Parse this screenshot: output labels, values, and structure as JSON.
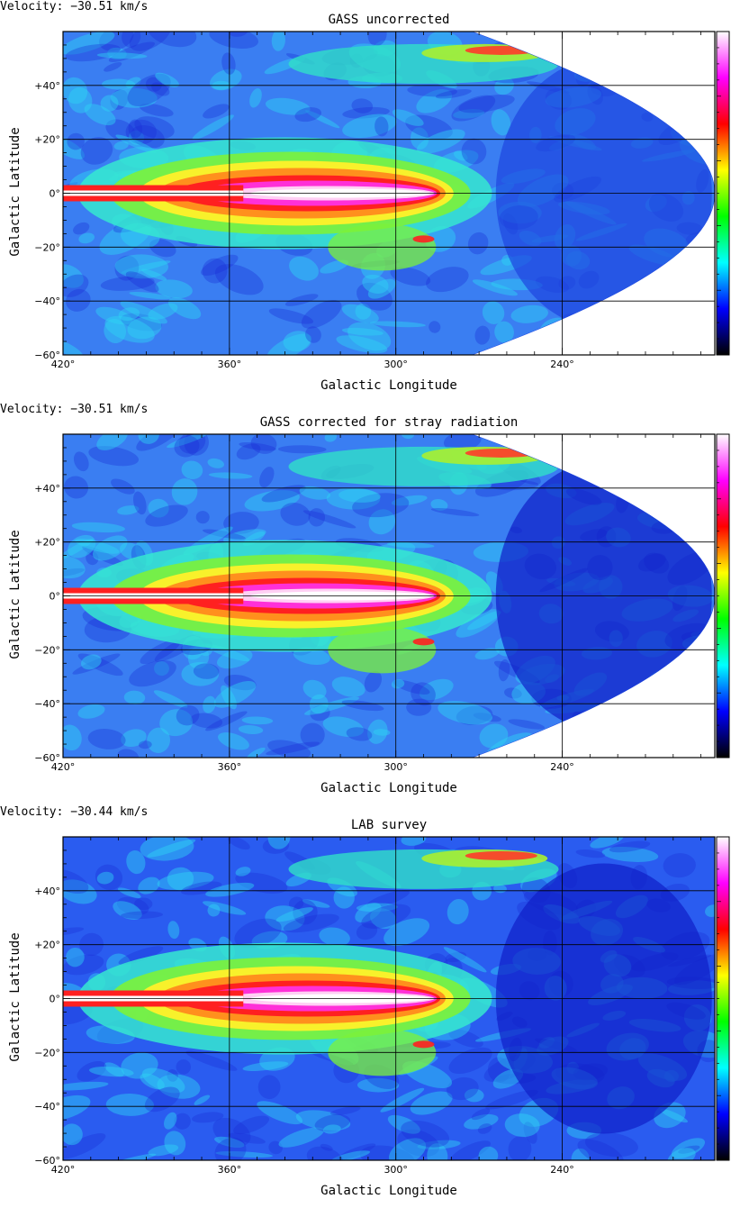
{
  "chart_data": [
    {
      "type": "heatmap",
      "velocity_label": "Velocity: −30.51 km/s",
      "title": "GASS uncorrected",
      "xlabel": "Galactic Longitude",
      "ylabel": "Galactic Latitude",
      "xlim": [
        420,
        185
      ],
      "ylim": [
        -60,
        60
      ],
      "xticks": [
        "420°",
        "360°",
        "300°",
        "240°"
      ],
      "yticks": [
        "+40°",
        "+20°",
        "0°",
        "−20°",
        "−40°",
        "−60°"
      ],
      "mask": "sinusoidal",
      "colormap": [
        "#000000",
        "#0000ff",
        "#00ffff",
        "#00ff00",
        "#ffff00",
        "#ff0000",
        "#ff00ff",
        "#ffffff"
      ]
    },
    {
      "type": "heatmap",
      "velocity_label": "Velocity: −30.51 km/s",
      "title": "GASS corrected for stray radiation",
      "xlabel": "Galactic Longitude",
      "ylabel": "Galactic Latitude",
      "xlim": [
        420,
        185
      ],
      "ylim": [
        -60,
        60
      ],
      "xticks": [
        "420°",
        "360°",
        "300°",
        "240°"
      ],
      "yticks": [
        "+40°",
        "+20°",
        "0°",
        "−20°",
        "−40°",
        "−60°"
      ],
      "mask": "sinusoidal",
      "colormap": [
        "#000000",
        "#0000ff",
        "#00ffff",
        "#00ff00",
        "#ffff00",
        "#ff0000",
        "#ff00ff",
        "#ffffff"
      ]
    },
    {
      "type": "heatmap",
      "velocity_label": "Velocity: −30.44 km/s",
      "title": "LAB survey",
      "xlabel": "Galactic Longitude",
      "ylabel": "Galactic Latitude",
      "xlim": [
        420,
        185
      ],
      "ylim": [
        -60,
        60
      ],
      "xticks": [
        "420°",
        "360°",
        "300°",
        "240°"
      ],
      "yticks": [
        "+40°",
        "+20°",
        "0°",
        "−20°",
        "−40°",
        "−60°"
      ],
      "mask": "none",
      "colormap": [
        "#000000",
        "#0000ff",
        "#00ffff",
        "#00ff00",
        "#ffff00",
        "#ff0000",
        "#ff00ff",
        "#ffffff"
      ]
    }
  ]
}
